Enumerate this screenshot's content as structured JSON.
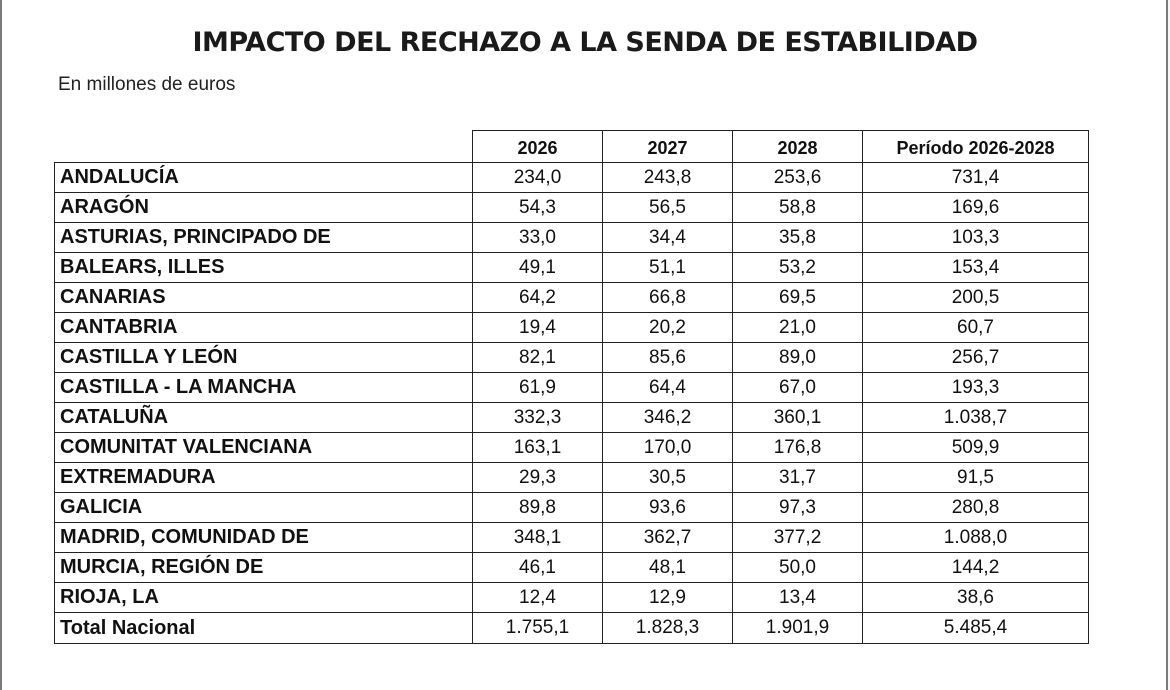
{
  "title": "IMPACTO DEL RECHAZO A LA SENDA DE ESTABILIDAD",
  "subtitle": "En millones de euros",
  "table": {
    "headers": [
      "2026",
      "2027",
      "2028",
      "Período 2026-2028"
    ],
    "rows": [
      {
        "region": "ANDALUCÍA",
        "values": [
          "234,0",
          "243,8",
          "253,6",
          "731,4"
        ]
      },
      {
        "region": "ARAGÓN",
        "values": [
          "54,3",
          "56,5",
          "58,8",
          "169,6"
        ]
      },
      {
        "region": "ASTURIAS, PRINCIPADO DE",
        "values": [
          "33,0",
          "34,4",
          "35,8",
          "103,3"
        ]
      },
      {
        "region": "BALEARS, ILLES",
        "values": [
          "49,1",
          "51,1",
          "53,2",
          "153,4"
        ]
      },
      {
        "region": "CANARIAS",
        "values": [
          "64,2",
          "66,8",
          "69,5",
          "200,5"
        ]
      },
      {
        "region": "CANTABRIA",
        "values": [
          "19,4",
          "20,2",
          "21,0",
          "60,7"
        ]
      },
      {
        "region": "CASTILLA Y LEÓN",
        "values": [
          "82,1",
          "85,6",
          "89,0",
          "256,7"
        ]
      },
      {
        "region": "CASTILLA - LA MANCHA",
        "values": [
          "61,9",
          "64,4",
          "67,0",
          "193,3"
        ]
      },
      {
        "region": "CATALUÑA",
        "values": [
          "332,3",
          "346,2",
          "360,1",
          "1.038,7"
        ]
      },
      {
        "region": "COMUNITAT VALENCIANA",
        "values": [
          "163,1",
          "170,0",
          "176,8",
          "509,9"
        ]
      },
      {
        "region": "EXTREMADURA",
        "values": [
          "29,3",
          "30,5",
          "31,7",
          "91,5"
        ]
      },
      {
        "region": "GALICIA",
        "values": [
          "89,8",
          "93,6",
          "97,3",
          "280,8"
        ]
      },
      {
        "region": "MADRID, COMUNIDAD DE",
        "values": [
          "348,1",
          "362,7",
          "377,2",
          "1.088,0"
        ]
      },
      {
        "region": "MURCIA, REGIÓN DE",
        "values": [
          "46,1",
          "48,1",
          "50,0",
          "144,2"
        ]
      },
      {
        "region": "RIOJA, LA",
        "values": [
          "12,4",
          "12,9",
          "13,4",
          "38,6"
        ]
      }
    ],
    "total": {
      "region": "Total Nacional",
      "values": [
        "1.755,1",
        "1.828,3",
        "1.901,9",
        "5.485,4"
      ]
    }
  }
}
